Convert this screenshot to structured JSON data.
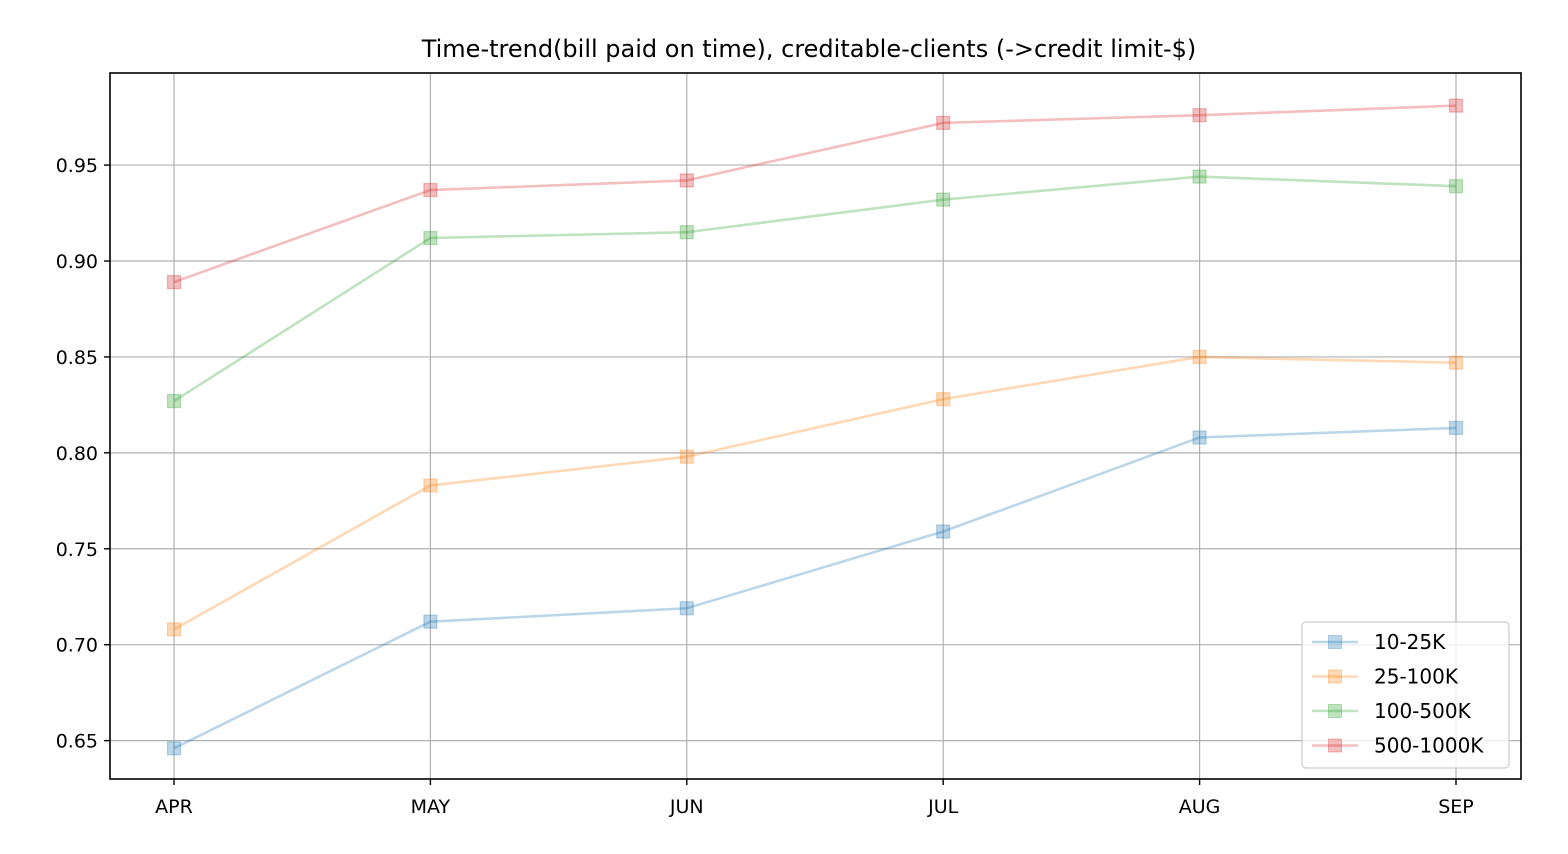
{
  "chart_data": {
    "type": "line",
    "title": "Time-trend(bill paid on time), creditable-clients (->credit limit-$)",
    "xlabel": "",
    "ylabel": "",
    "categories": [
      "APR",
      "MAY",
      "JUN",
      "JUL",
      "AUG",
      "SEP"
    ],
    "ylim": [
      0.63,
      0.998
    ],
    "yticks": [
      0.65,
      0.7,
      0.75,
      0.8,
      0.85,
      0.9,
      0.95
    ],
    "ytick_labels": [
      "0.65",
      "0.70",
      "0.75",
      "0.80",
      "0.85",
      "0.90",
      "0.95"
    ],
    "grid": true,
    "legend_position": "bottom-right",
    "marker": "square",
    "series": [
      {
        "name": "10-25K",
        "color": "#1f77b4",
        "values": [
          0.646,
          0.712,
          0.719,
          0.759,
          0.808,
          0.813
        ]
      },
      {
        "name": "25-100K",
        "color": "#ff7f0e",
        "values": [
          0.708,
          0.783,
          0.798,
          0.828,
          0.85,
          0.847
        ]
      },
      {
        "name": "100-500K",
        "color": "#2ca02c",
        "values": [
          0.827,
          0.912,
          0.915,
          0.932,
          0.944,
          0.939
        ]
      },
      {
        "name": "500-1000K",
        "color": "#d62728",
        "values": [
          0.889,
          0.937,
          0.942,
          0.972,
          0.976,
          0.981
        ]
      }
    ]
  }
}
